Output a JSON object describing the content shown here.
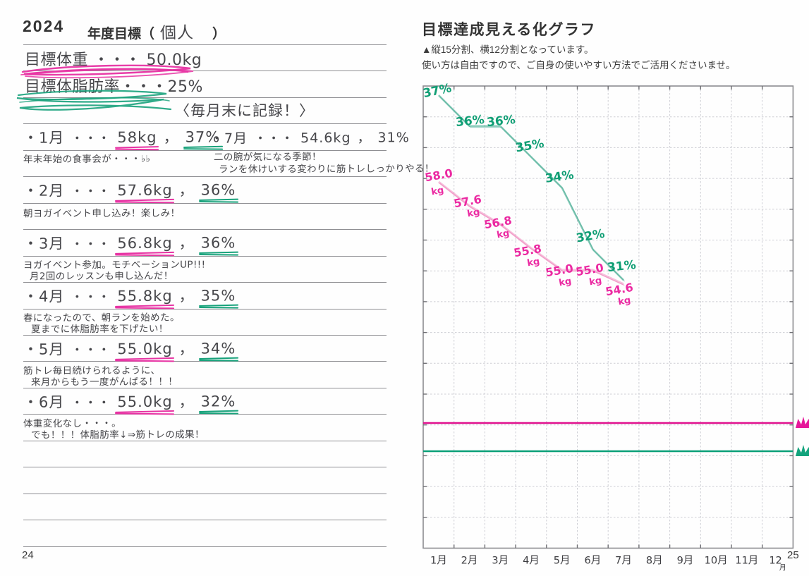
{
  "left_page": {
    "year": "2024",
    "title_prefix": "年度目標（",
    "title_fill": "個人",
    "title_suffix": "）",
    "goal_weight": "目標体重 ・・・ 50.0kg",
    "goal_bodyfat": "目標体脂肪率・・・25%",
    "record_reminder": "〈毎月末に記録！〉",
    "entries": [
      {
        "month": "・1月",
        "dots": "・・・",
        "weight": "58kg",
        "comma": "，",
        "fat": "37%",
        "notes": [
          "年末年始の食事会が・・・♭♭"
        ]
      },
      {
        "month": "・2月",
        "dots": "・・・",
        "weight": "57.6kg",
        "comma": "，",
        "fat": "36%",
        "notes": [
          "朝ヨガイベント申し込み！楽しみ！"
        ]
      },
      {
        "month": "・3月",
        "dots": "・・・",
        "weight": "56.8kg",
        "comma": "，",
        "fat": "36%",
        "notes": [
          "ヨガイベント参加。モチベーションUP!!!",
          "月2回のレッスンも申し込んだ！"
        ]
      },
      {
        "month": "・4月",
        "dots": "・・・",
        "weight": "55.8kg",
        "comma": "，",
        "fat": "35%",
        "notes": [
          "春になったので、朝ランを始めた。",
          "夏までに体脂肪率を下げたい！"
        ]
      },
      {
        "month": "・5月",
        "dots": "・・・",
        "weight": "55.0kg",
        "comma": "，",
        "fat": "34%",
        "notes": [
          "筋トレ毎日続けられるように、",
          "来月からもう一度がんばる！！！"
        ]
      },
      {
        "month": "・6月",
        "dots": "・・・",
        "weight": "55.0kg",
        "comma": "，",
        "fat": "32%",
        "notes": [
          "体重変化なし・・・。",
          "でも！！！体脂肪率↓⇒筋トレの成果！"
        ]
      },
      {
        "month": "・7月",
        "dots": "・・・",
        "weight": "54.6kg",
        "comma": "，",
        "fat": "31%",
        "notes": [
          "二の腕が気になる季節！",
          "ランを休けいする変わりに筋トレしっかりやる！"
        ]
      }
    ],
    "page_number": "24"
  },
  "right_page": {
    "title": "目標達成見える化グラフ",
    "instructions": [
      "▲縦15分割、横12分割となっています。",
      "使い方は自由ですので、ご自身の使いやすい方法でご活用くださいませ。"
    ],
    "page_number": "25"
  },
  "chart_data": {
    "type": "line",
    "x": [
      "1月",
      "2月",
      "3月",
      "4月",
      "5月",
      "6月",
      "7月",
      "8月",
      "9月",
      "10月",
      "11月",
      "12月"
    ],
    "grid": {
      "rows": 15,
      "cols": 12
    },
    "series": [
      {
        "name": "体重",
        "unit": "kg",
        "color": "#eb2aa2",
        "values": [
          58.0,
          57.6,
          56.8,
          55.8,
          55.0,
          55.0,
          54.6
        ],
        "labels": [
          "58.0",
          "57.6",
          "56.8",
          "55.8",
          "55.0",
          "55.0",
          "54.6"
        ]
      },
      {
        "name": "体脂肪率",
        "unit": "%",
        "color": "#0f9e74",
        "values": [
          37,
          36,
          36,
          35,
          34,
          32,
          31
        ],
        "labels": [
          "37%",
          "36%",
          "36%",
          "35%",
          "34%",
          "32%",
          "31%"
        ]
      }
    ],
    "targets": [
      {
        "name": "目標体重",
        "value": 50.0,
        "unit": "kg",
        "color": "#e0118e"
      },
      {
        "name": "目標体脂肪率",
        "value": 25,
        "unit": "%",
        "color": "#0ba078"
      }
    ],
    "legend": "none",
    "note": "hand-drawn lines on a 15x12 grid, no numeric y-axis"
  }
}
